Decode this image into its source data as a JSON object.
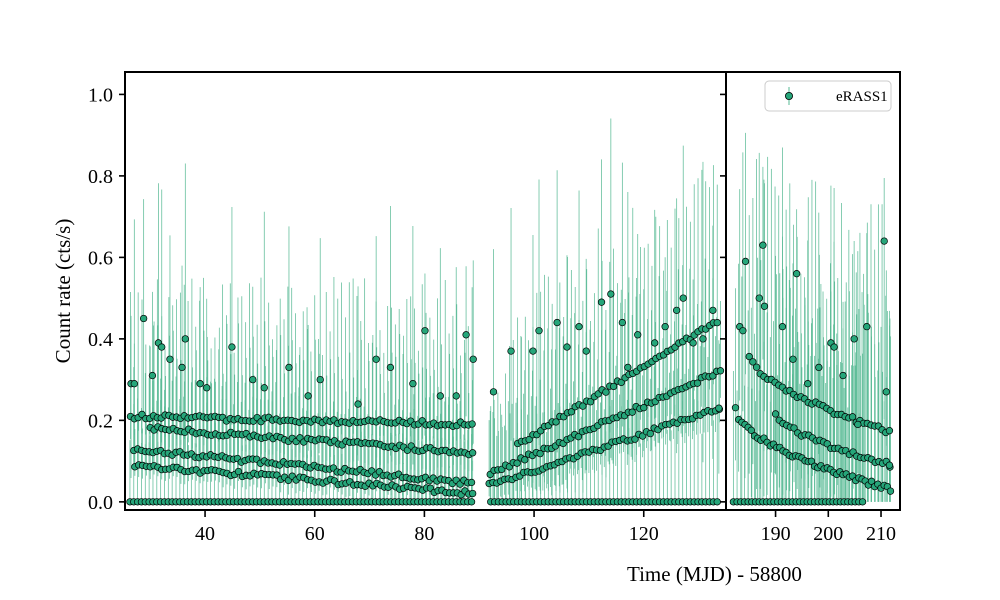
{
  "chart_data": {
    "type": "scatter",
    "xlabel": "Time (MJD) - 58800",
    "ylabel": "Count rate (cts/s)",
    "legend": {
      "position": "top-right",
      "entries": [
        "eRASS1"
      ]
    },
    "grid": false,
    "colors": {
      "marker": "#26a67a",
      "errorbar": "#56b993",
      "marker_edge": "#000000"
    },
    "panels": [
      {
        "name": "left",
        "xlim": [
          25.4,
          135.0
        ],
        "ylim": [
          -0.02,
          1.055
        ],
        "xticks": [
          40,
          60,
          80,
          100,
          120
        ],
        "yticks": [
          0.0,
          0.2,
          0.4,
          0.6,
          0.8,
          1.0
        ],
        "ytick_labels": [
          "0.0",
          "0.2",
          "0.4",
          "0.6",
          "0.8",
          "1.0"
        ],
        "gap": [
          89.2,
          91.6
        ],
        "zero_band": {
          "start": 26.3,
          "end": 134.0,
          "step": 0.7,
          "value": 0.0,
          "err_up": 0.2
        },
        "tracks": [
          {
            "start": 26.4,
            "end": 89.0,
            "step": 0.7,
            "y0": 0.21,
            "y1": 0.19,
            "err_up": 0.26,
            "err_lo": 0.05
          },
          {
            "start": 30.0,
            "end": 89.0,
            "step": 0.7,
            "y0": 0.18,
            "y1": 0.12,
            "err_up": 0.2,
            "err_lo": 0.05
          },
          {
            "start": 27.0,
            "end": 89.0,
            "step": 0.7,
            "y0": 0.13,
            "y1": 0.045,
            "err_up": 0.15,
            "err_lo": 0.04
          },
          {
            "start": 27.2,
            "end": 89.0,
            "step": 0.7,
            "y0": 0.09,
            "y1": 0.02,
            "err_up": 0.1,
            "err_lo": 0.03
          },
          {
            "start": 91.8,
            "end": 134.0,
            "step": 0.7,
            "y0": 0.04,
            "y1": 0.23,
            "err_up": 0.14,
            "err_lo": 0.05
          },
          {
            "start": 92.0,
            "end": 134.0,
            "step": 0.7,
            "y0": 0.07,
            "y1": 0.32,
            "err_up": 0.22,
            "err_lo": 0.1
          },
          {
            "start": 97.0,
            "end": 134.0,
            "step": 0.7,
            "y0": 0.14,
            "y1": 0.45,
            "err_up": 0.3,
            "err_lo": 0.18
          }
        ],
        "outliers": [
          [
            26.5,
            0.29
          ],
          [
            27.1,
            0.29
          ],
          [
            28.8,
            0.45
          ],
          [
            30.4,
            0.31
          ],
          [
            31.5,
            0.39
          ],
          [
            32.1,
            0.38
          ],
          [
            33.6,
            0.35
          ],
          [
            35.8,
            0.33
          ],
          [
            36.4,
            0.4
          ],
          [
            39.1,
            0.29
          ],
          [
            40.3,
            0.28
          ],
          [
            44.9,
            0.38
          ],
          [
            48.7,
            0.3
          ],
          [
            50.8,
            0.28
          ],
          [
            55.3,
            0.33
          ],
          [
            58.8,
            0.26
          ],
          [
            61.0,
            0.3
          ],
          [
            67.9,
            0.24
          ],
          [
            71.2,
            0.35
          ],
          [
            73.8,
            0.33
          ],
          [
            77.9,
            0.29
          ],
          [
            80.1,
            0.42
          ],
          [
            82.9,
            0.26
          ],
          [
            85.8,
            0.26
          ],
          [
            87.6,
            0.41
          ],
          [
            88.9,
            0.35
          ],
          [
            92.6,
            0.27
          ],
          [
            95.8,
            0.37
          ],
          [
            99.8,
            0.37
          ],
          [
            100.9,
            0.42
          ],
          [
            104.2,
            0.44
          ],
          [
            106.0,
            0.38
          ],
          [
            108.2,
            0.43
          ],
          [
            109.5,
            0.37
          ],
          [
            112.3,
            0.49
          ],
          [
            114.0,
            0.51
          ],
          [
            116.1,
            0.44
          ],
          [
            117.1,
            0.33
          ],
          [
            118.9,
            0.41
          ],
          [
            122.0,
            0.39
          ],
          [
            123.9,
            0.43
          ],
          [
            126.0,
            0.47
          ],
          [
            127.2,
            0.5
          ],
          [
            129.0,
            0.39
          ],
          [
            130.8,
            0.4
          ],
          [
            132.6,
            0.47
          ],
          [
            133.7,
            0.23
          ]
        ]
      },
      {
        "name": "right",
        "xlim": [
          180.6,
          213.6
        ],
        "ylim": [
          -0.02,
          1.055
        ],
        "xticks": [
          190,
          200,
          210
        ],
        "yticks": [
          0.0,
          0.2,
          0.4,
          0.6,
          0.8,
          1.0
        ],
        "zero_band": {
          "start": 182.0,
          "end": 207.0,
          "step": 0.7,
          "value": 0.0,
          "err_up": 0.28
        },
        "tracks": [
          {
            "start": 182.4,
            "end": 212.0,
            "step": 0.6,
            "y0": 0.23,
            "y1": 0.03,
            "err_up": 0.34,
            "err_lo": 0.2,
            "curve": 0.55
          },
          {
            "start": 185.0,
            "end": 212.0,
            "step": 0.7,
            "y0": 0.36,
            "y1": 0.17,
            "err_up": 0.42,
            "err_lo": 0.25,
            "curve": 0.6
          },
          {
            "start": 190.0,
            "end": 212.0,
            "step": 0.7,
            "y0": 0.22,
            "y1": 0.09,
            "err_up": 0.3,
            "err_lo": 0.15,
            "curve": 0.6
          }
        ],
        "outliers": [
          [
            183.2,
            0.43
          ],
          [
            183.8,
            0.42
          ],
          [
            184.3,
            0.59
          ],
          [
            186.9,
            0.5
          ],
          [
            187.6,
            0.63
          ],
          [
            187.9,
            0.48
          ],
          [
            191.3,
            0.43
          ],
          [
            193.3,
            0.35
          ],
          [
            194.0,
            0.56
          ],
          [
            196.1,
            0.29
          ],
          [
            198.2,
            0.33
          ],
          [
            200.5,
            0.39
          ],
          [
            201.1,
            0.38
          ],
          [
            202.8,
            0.31
          ],
          [
            204.9,
            0.4
          ],
          [
            205.6,
            0.19
          ],
          [
            207.3,
            0.43
          ],
          [
            210.6,
            0.64
          ],
          [
            211.0,
            0.27
          ],
          [
            211.6,
            0.09
          ]
        ]
      }
    ]
  }
}
